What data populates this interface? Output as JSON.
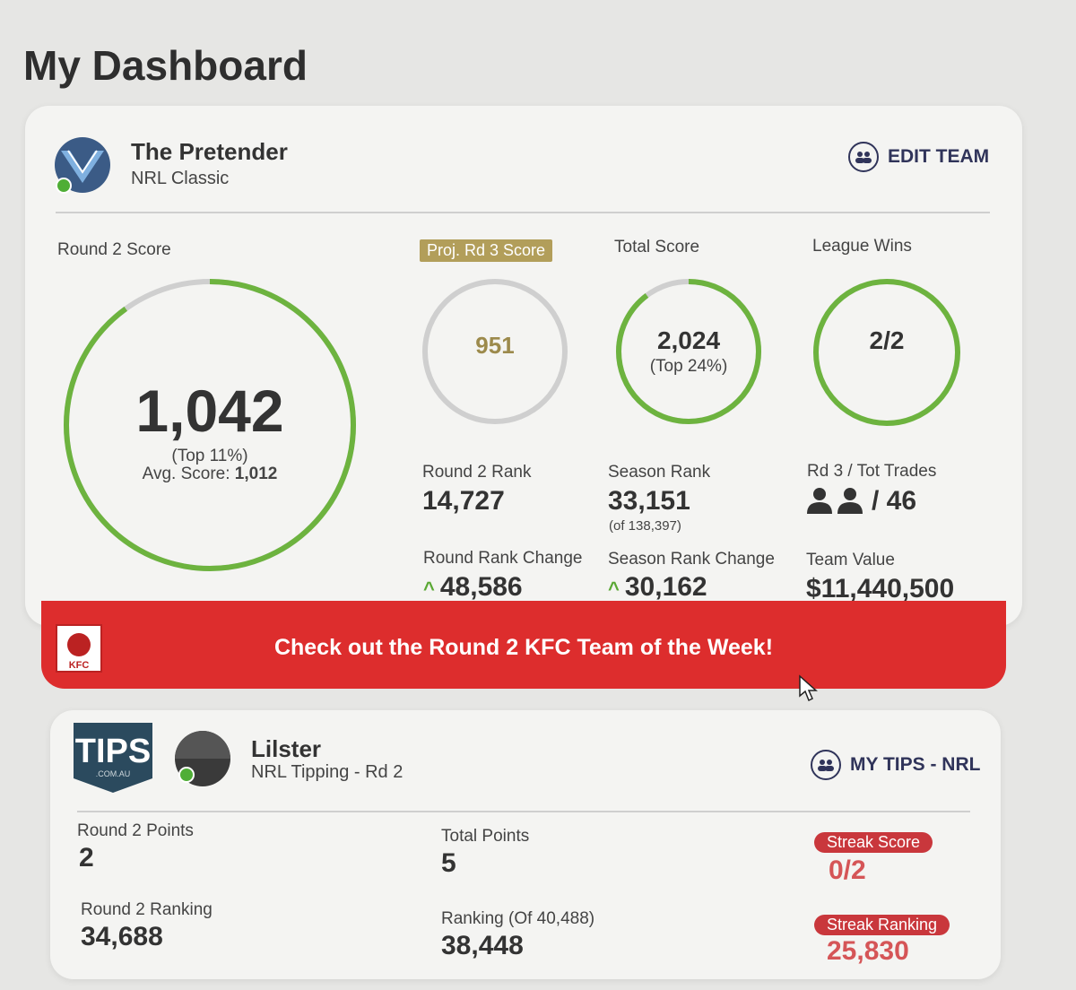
{
  "page": {
    "title": "My Dashboard"
  },
  "classic": {
    "team_name": "The Pretender",
    "game": "NRL Classic",
    "edit_label": "EDIT TEAM",
    "round_score_label": "Round 2 Score",
    "round_score": "1,042",
    "round_score_top": "(Top 11%)",
    "avg_label": "Avg. Score: ",
    "avg_value": "1,012",
    "proj_label": "Proj. Rd 3 Score",
    "proj_value": "951",
    "total_label": "Total Score",
    "total_value": "2,024",
    "total_top": "(Top 24%)",
    "wins_label": "League Wins",
    "wins_value": "2/2",
    "round_rank_label": "Round 2 Rank",
    "round_rank": "14,727",
    "season_rank_label": "Season Rank",
    "season_rank": "33,151",
    "season_rank_of": "(of 138,397)",
    "trades_label": "Rd 3 / Tot Trades",
    "trades_total": "/ 46",
    "round_change_label": "Round Rank Change",
    "round_change": "48,586",
    "season_change_label": "Season Rank Change",
    "season_change": "30,162",
    "value_label": "Team Value",
    "team_value": "$11,440,500",
    "colors": {
      "ring": "#6db33f",
      "ring_track": "#cfcfcf",
      "chip": "#b29e5a"
    }
  },
  "banner": {
    "text": "Check out the Round 2 KFC Team of the Week!",
    "logo_text": "KFC",
    "color": "#dd2d2d"
  },
  "tips": {
    "logo_text": "TIPS",
    "logo_sub": ".COM.AU",
    "name": "Lilster",
    "game": "NRL Tipping - Rd 2",
    "action_label": "MY TIPS - NRL",
    "round_points_label": "Round 2 Points",
    "round_points": "2",
    "total_points_label": "Total Points",
    "total_points": "5",
    "streak_score_label": "Streak Score",
    "streak_score": "0/2",
    "round_ranking_label": "Round 2 Ranking",
    "round_ranking": "34,688",
    "ranking_label": "Ranking (Of 40,488)",
    "ranking": "38,448",
    "streak_ranking_label": "Streak Ranking",
    "streak_ranking": "25,830"
  },
  "icons": [
    "team-avatar-icon",
    "group-icon",
    "kfc-logo-icon",
    "tips-logo-icon",
    "mouse-cursor-icon",
    "trade-person-icon",
    "up-arrow-icon"
  ]
}
